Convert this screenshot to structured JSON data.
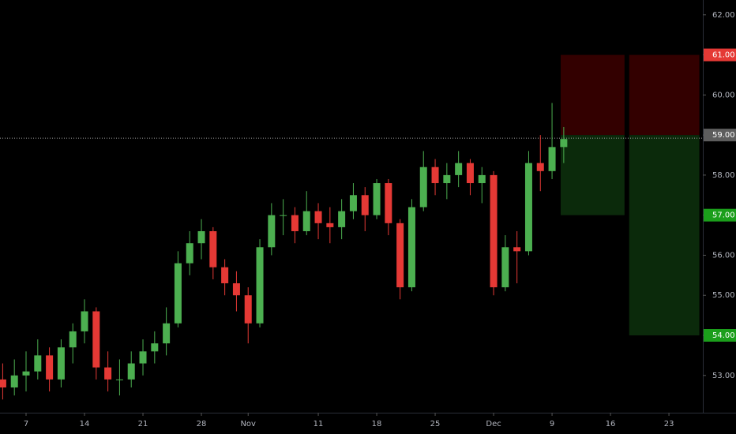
{
  "chart_data": {
    "type": "candlestick",
    "up_color": "#4caf50",
    "down_color": "#e53935",
    "ylim": [
      52.07,
      62.37
    ],
    "yticks": [
      {
        "value": 53,
        "label": "53.00"
      },
      {
        "value": 54,
        "label": "54.00"
      },
      {
        "value": 55,
        "label": "55.00"
      },
      {
        "value": 56,
        "label": "56.00"
      },
      {
        "value": 57,
        "label": "57.00"
      },
      {
        "value": 58,
        "label": "58.00"
      },
      {
        "value": 59,
        "label": "59.00"
      },
      {
        "value": 60,
        "label": "60.00"
      },
      {
        "value": 61,
        "label": "61.00"
      },
      {
        "value": 62,
        "label": "62.00"
      }
    ],
    "xlim": [
      -2.23,
      57.9
    ],
    "xticks": [
      {
        "value": 0,
        "label": "7"
      },
      {
        "value": 5,
        "label": "14"
      },
      {
        "value": 10,
        "label": "21"
      },
      {
        "value": 15,
        "label": "28"
      },
      {
        "value": 19,
        "label": "Nov"
      },
      {
        "value": 25,
        "label": "11"
      },
      {
        "value": 30,
        "label": "18"
      },
      {
        "value": 35,
        "label": "25"
      },
      {
        "value": 40,
        "label": "Dec"
      },
      {
        "value": 45,
        "label": "9"
      },
      {
        "value": 50,
        "label": "16"
      },
      {
        "value": 55,
        "label": "23"
      }
    ],
    "price_line": 58.92,
    "candles": {
      "x": [
        -2,
        -1,
        0,
        1,
        2,
        3,
        4,
        5,
        6,
        7,
        8,
        9,
        10,
        11,
        12,
        13,
        14,
        15,
        16,
        17,
        18,
        19,
        20,
        21,
        22,
        23,
        24,
        25,
        26,
        27,
        28,
        29,
        30,
        31,
        32,
        33,
        34,
        35,
        36,
        37,
        38,
        39,
        40,
        41,
        42,
        43,
        44,
        45,
        46
      ],
      "open": [
        52.9,
        52.7,
        53.0,
        53.1,
        53.5,
        52.9,
        53.7,
        54.1,
        54.6,
        53.2,
        52.9,
        52.9,
        53.3,
        53.6,
        53.8,
        54.3,
        55.8,
        56.3,
        56.6,
        55.7,
        55.3,
        55.0,
        54.3,
        56.2,
        57.0,
        57.0,
        56.6,
        57.1,
        56.8,
        56.7,
        57.1,
        57.5,
        57.0,
        57.8,
        56.8,
        55.2,
        57.2,
        58.2,
        57.8,
        58.0,
        58.3,
        57.8,
        58.0,
        55.2,
        56.2,
        56.1,
        58.3,
        58.1,
        58.7
      ],
      "high": [
        53.3,
        53.4,
        53.6,
        53.9,
        53.7,
        53.9,
        54.3,
        54.9,
        54.7,
        53.6,
        53.4,
        53.6,
        53.9,
        54.1,
        54.7,
        56.1,
        56.6,
        56.9,
        56.7,
        55.9,
        55.6,
        55.2,
        56.4,
        57.3,
        57.4,
        57.2,
        57.6,
        57.3,
        57.2,
        57.4,
        57.8,
        57.7,
        57.9,
        57.9,
        56.9,
        57.4,
        58.6,
        58.4,
        58.3,
        58.6,
        58.4,
        58.2,
        58.1,
        56.5,
        56.6,
        58.6,
        59.0,
        59.8,
        59.2
      ],
      "low": [
        52.4,
        52.5,
        52.6,
        52.9,
        52.6,
        52.7,
        53.3,
        53.8,
        52.9,
        52.6,
        52.5,
        52.7,
        53.0,
        53.3,
        53.5,
        54.2,
        55.5,
        55.9,
        55.4,
        55.0,
        54.6,
        53.8,
        54.2,
        56.0,
        56.5,
        56.3,
        56.5,
        56.4,
        56.3,
        56.4,
        56.9,
        56.6,
        56.9,
        56.5,
        54.9,
        55.1,
        57.1,
        57.5,
        57.4,
        57.7,
        57.5,
        57.3,
        55.0,
        55.1,
        55.3,
        56.0,
        57.6,
        57.9,
        58.3
      ],
      "close": [
        52.7,
        53.0,
        53.1,
        53.5,
        52.9,
        53.7,
        54.1,
        54.6,
        53.2,
        52.9,
        52.9,
        53.3,
        53.6,
        53.8,
        54.3,
        55.8,
        56.3,
        56.6,
        55.7,
        55.3,
        55.0,
        54.3,
        56.2,
        57.0,
        57.0,
        56.6,
        57.1,
        56.8,
        56.7,
        57.1,
        57.5,
        57.0,
        57.8,
        56.8,
        55.2,
        57.2,
        58.2,
        57.8,
        58.0,
        58.3,
        57.8,
        58.0,
        55.2,
        56.2,
        56.1,
        58.3,
        58.1,
        58.7,
        58.9
      ]
    },
    "positions": [
      {
        "entry": 59,
        "stop": 61,
        "target": 57,
        "x_start": 45.74,
        "x_end": 51.2
      },
      {
        "entry": 59,
        "stop": 61,
        "target": 54,
        "x_start": 51.6,
        "x_end": 57.6
      }
    ]
  }
}
